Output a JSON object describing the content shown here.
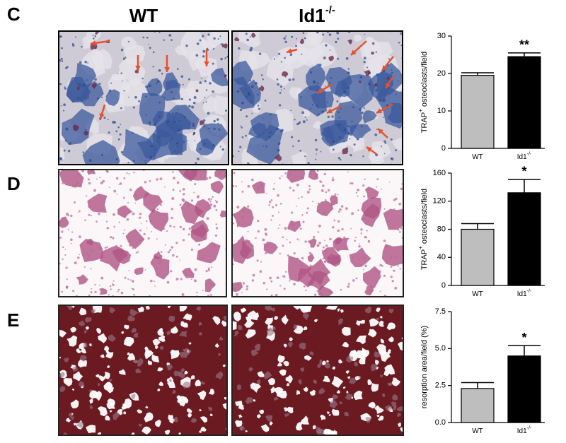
{
  "panels": [
    "C",
    "D",
    "E"
  ],
  "column_labels": [
    {
      "text": "WT"
    },
    {
      "text": "Id1",
      "sup": "-/-"
    }
  ],
  "chart_data": [
    {
      "type": "bar",
      "ylabel": "TRAP",
      "ylabel_sup": "+",
      "ylabel_rest": " osteoclasts/field",
      "categories": [
        "WT",
        "Id1"
      ],
      "category_sup": [
        null,
        "-/-"
      ],
      "values": [
        19.5,
        24.5
      ],
      "errors": [
        0.7,
        1.0
      ],
      "colors": [
        "#bebebe",
        "#000000"
      ],
      "annotation": "**",
      "ylim": [
        0,
        30
      ],
      "yticks": [
        0,
        10,
        20,
        30
      ]
    },
    {
      "type": "bar",
      "ylabel": "TRAP",
      "ylabel_sup": "+",
      "ylabel_rest": " osteoclasts/field",
      "categories": [
        "WT",
        "Id1"
      ],
      "category_sup": [
        null,
        "-/-"
      ],
      "values": [
        80,
        132
      ],
      "errors": [
        8,
        19
      ],
      "colors": [
        "#bebebe",
        "#000000"
      ],
      "annotation": "*",
      "ylim": [
        0,
        160
      ],
      "yticks": [
        0,
        40,
        80,
        120,
        160
      ]
    },
    {
      "type": "bar",
      "ylabel": "resorption area/field (%)",
      "categories": [
        "WT",
        "Id1"
      ],
      "category_sup": [
        null,
        "-/-"
      ],
      "values": [
        2.3,
        4.5
      ],
      "errors": [
        0.4,
        0.7
      ],
      "colors": [
        "#bebebe",
        "#000000"
      ],
      "annotation": "*",
      "ylim": [
        0,
        7.5
      ],
      "yticks": [
        {
          "value": 0,
          "label": "0.0"
        },
        2.5,
        {
          "value": 5,
          "label": "5.0"
        },
        7.5
      ]
    }
  ]
}
